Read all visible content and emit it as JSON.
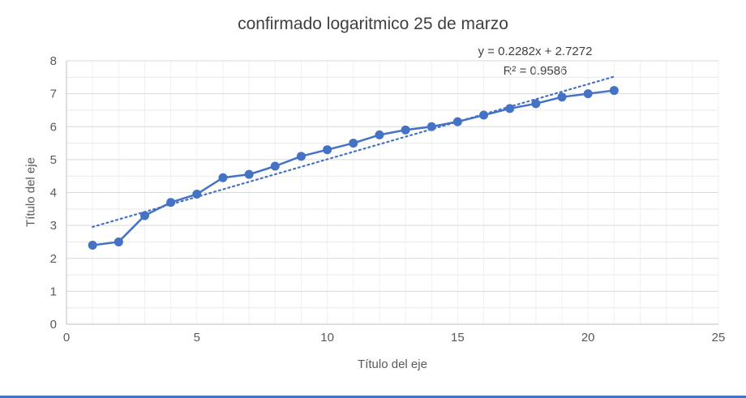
{
  "title": "confirmado logaritmico 25 de marzo",
  "equation": "y = 0.2282x + 2.7272",
  "r_squared": "R² = 0.9586",
  "x_axis_title": "Título del eje",
  "y_axis_title": "Título del eje",
  "colors": {
    "series": "#4472C4",
    "trendline": "#4472C4",
    "grid_major": "#D9D9D9",
    "grid_minor": "#E9E9E9",
    "grid_vertical": "#F1F1F1",
    "axis_line": "#BFBFBF",
    "tick_text": "#595959",
    "title_text": "#404040",
    "bottom_border": "#4472C4"
  },
  "chart_data": {
    "type": "line",
    "title": "confirmado logaritmico 25 de marzo",
    "xlabel": "Título del eje",
    "ylabel": "Título del eje",
    "x": [
      1,
      2,
      3,
      4,
      5,
      6,
      7,
      8,
      9,
      10,
      11,
      12,
      13,
      14,
      15,
      16,
      17,
      18,
      19,
      20,
      21
    ],
    "y": [
      2.4,
      2.5,
      3.3,
      3.7,
      3.95,
      4.45,
      4.55,
      4.8,
      5.1,
      5.3,
      5.5,
      5.75,
      5.9,
      6.0,
      6.15,
      6.35,
      6.55,
      6.7,
      6.9,
      7.0,
      7.1
    ],
    "xlim": [
      0,
      25
    ],
    "ylim": [
      0,
      8
    ],
    "x_ticks": [
      0,
      5,
      10,
      15,
      20,
      25
    ],
    "y_ticks": [
      0,
      1,
      2,
      3,
      4,
      5,
      6,
      7,
      8
    ],
    "grid": true,
    "legend_position": "none",
    "trendline": {
      "type": "linear",
      "slope": 0.2282,
      "intercept": 2.7272,
      "x_start": 1,
      "x_end": 21,
      "label": "y = 0.2282x + 2.7272",
      "r2": 0.9586,
      "style": "dotted"
    }
  }
}
